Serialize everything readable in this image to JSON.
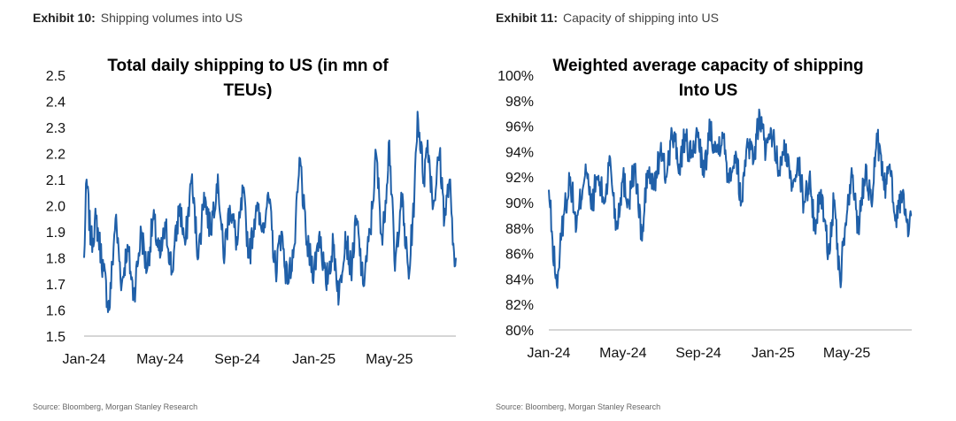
{
  "exhibits": [
    {
      "label": "Exhibit 10:",
      "desc": "Shipping volumes into US",
      "source": "Source: Bloomberg, Morgan Stanley Research"
    },
    {
      "label": "Exhibit 11:",
      "desc": "Capacity of shipping into US",
      "source": "Source: Bloomberg, Morgan Stanley Research"
    }
  ],
  "series_color": "#1f5fa8",
  "chart_data": [
    {
      "type": "line",
      "title_lines": [
        "Total daily shipping to US (in mn of",
        "TEUs)"
      ],
      "ylim": [
        1.5,
        2.5
      ],
      "yticks": [
        "1.5",
        "1.6",
        "1.7",
        "1.8",
        "1.9",
        "2.0",
        "2.1",
        "2.2",
        "2.3",
        "2.4",
        "2.5"
      ],
      "xticks": [
        "Jan-24",
        "May-24",
        "Sep-24",
        "Jan-25",
        "May-25"
      ],
      "xlim": [
        "2024-01-01",
        "2025-08-15"
      ],
      "grid": false,
      "legend": "none",
      "anchors": [
        [
          "2024-01-01",
          1.8
        ],
        [
          "2024-01-05",
          2.1
        ],
        [
          "2024-01-12",
          1.85
        ],
        [
          "2024-01-20",
          1.95
        ],
        [
          "2024-02-01",
          1.75
        ],
        [
          "2024-02-10",
          1.6
        ],
        [
          "2024-02-20",
          1.95
        ],
        [
          "2024-03-01",
          1.7
        ],
        [
          "2024-03-10",
          1.85
        ],
        [
          "2024-03-20",
          1.65
        ],
        [
          "2024-04-01",
          1.9
        ],
        [
          "2024-04-10",
          1.75
        ],
        [
          "2024-04-20",
          1.95
        ],
        [
          "2024-05-01",
          1.8
        ],
        [
          "2024-05-10",
          1.92
        ],
        [
          "2024-05-20",
          1.75
        ],
        [
          "2024-06-01",
          2.0
        ],
        [
          "2024-06-10",
          1.85
        ],
        [
          "2024-06-20",
          2.1
        ],
        [
          "2024-07-01",
          1.8
        ],
        [
          "2024-07-10",
          2.05
        ],
        [
          "2024-07-20",
          1.9
        ],
        [
          "2024-08-01",
          2.12
        ],
        [
          "2024-08-10",
          1.8
        ],
        [
          "2024-08-20",
          2.0
        ],
        [
          "2024-09-01",
          1.85
        ],
        [
          "2024-09-10",
          2.05
        ],
        [
          "2024-09-20",
          1.8
        ],
        [
          "2024-10-01",
          2.0
        ],
        [
          "2024-10-10",
          1.9
        ],
        [
          "2024-10-20",
          2.05
        ],
        [
          "2024-11-01",
          1.75
        ],
        [
          "2024-11-10",
          1.9
        ],
        [
          "2024-11-20",
          1.7
        ],
        [
          "2024-12-01",
          1.85
        ],
        [
          "2024-12-10",
          2.18
        ],
        [
          "2024-12-20",
          1.85
        ],
        [
          "2025-01-01",
          1.75
        ],
        [
          "2025-01-10",
          1.9
        ],
        [
          "2025-01-20",
          1.7
        ],
        [
          "2025-02-01",
          1.85
        ],
        [
          "2025-02-10",
          1.65
        ],
        [
          "2025-02-20",
          1.9
        ],
        [
          "2025-03-01",
          1.75
        ],
        [
          "2025-03-10",
          1.95
        ],
        [
          "2025-03-20",
          1.7
        ],
        [
          "2025-04-01",
          1.9
        ],
        [
          "2025-04-10",
          2.2
        ],
        [
          "2025-04-20",
          1.85
        ],
        [
          "2025-05-01",
          2.25
        ],
        [
          "2025-05-10",
          1.75
        ],
        [
          "2025-05-20",
          2.05
        ],
        [
          "2025-06-01",
          1.72
        ],
        [
          "2025-06-10",
          2.05
        ],
        [
          "2025-06-15",
          2.36
        ],
        [
          "2025-06-25",
          2.1
        ],
        [
          "2025-07-01",
          2.25
        ],
        [
          "2025-07-10",
          2.0
        ],
        [
          "2025-07-20",
          2.2
        ],
        [
          "2025-07-28",
          1.95
        ],
        [
          "2025-08-05",
          2.1
        ],
        [
          "2025-08-10",
          1.85
        ],
        [
          "2025-08-15",
          1.8
        ]
      ]
    },
    {
      "type": "line",
      "title_lines": [
        "Weighted average capacity of shipping",
        "Into US"
      ],
      "ylim": [
        80,
        100
      ],
      "yticks": [
        "80%",
        "82%",
        "84%",
        "86%",
        "88%",
        "90%",
        "92%",
        "94%",
        "96%",
        "98%",
        "100%"
      ],
      "xticks": [
        "Jan-24",
        "May-24",
        "Sep-24",
        "Jan-25",
        "May-25"
      ],
      "xlim": [
        "2024-01-01",
        "2025-08-15"
      ],
      "grid": false,
      "legend": "none",
      "anchors": [
        [
          "2024-01-01",
          91.0
        ],
        [
          "2024-01-07",
          87.0
        ],
        [
          "2024-01-14",
          83.5
        ],
        [
          "2024-01-25",
          89.0
        ],
        [
          "2024-02-05",
          92.0
        ],
        [
          "2024-02-15",
          88.0
        ],
        [
          "2024-03-01",
          93.0
        ],
        [
          "2024-03-10",
          89.5
        ],
        [
          "2024-03-20",
          92.0
        ],
        [
          "2024-04-01",
          90.0
        ],
        [
          "2024-04-10",
          93.5
        ],
        [
          "2024-04-20",
          88.0
        ],
        [
          "2024-05-01",
          92.0
        ],
        [
          "2024-05-10",
          90.0
        ],
        [
          "2024-05-20",
          93.0
        ],
        [
          "2024-06-01",
          87.0
        ],
        [
          "2024-06-10",
          92.5
        ],
        [
          "2024-06-20",
          91.0
        ],
        [
          "2024-07-01",
          94.0
        ],
        [
          "2024-07-10",
          92.0
        ],
        [
          "2024-07-20",
          95.5
        ],
        [
          "2024-08-01",
          93.0
        ],
        [
          "2024-08-10",
          95.0
        ],
        [
          "2024-08-20",
          93.5
        ],
        [
          "2024-09-01",
          95.5
        ],
        [
          "2024-09-10",
          92.0
        ],
        [
          "2024-09-20",
          96.0
        ],
        [
          "2024-10-01",
          94.0
        ],
        [
          "2024-10-10",
          95.5
        ],
        [
          "2024-10-20",
          92.0
        ],
        [
          "2024-11-01",
          94.0
        ],
        [
          "2024-11-10",
          90.0
        ],
        [
          "2024-11-20",
          95.0
        ],
        [
          "2024-12-01",
          93.5
        ],
        [
          "2024-12-10",
          97.0
        ],
        [
          "2024-12-20",
          94.0
        ],
        [
          "2025-01-01",
          95.0
        ],
        [
          "2025-01-10",
          92.5
        ],
        [
          "2025-01-20",
          94.0
        ],
        [
          "2025-02-01",
          91.5
        ],
        [
          "2025-02-10",
          93.5
        ],
        [
          "2025-02-20",
          90.0
        ],
        [
          "2025-03-01",
          92.0
        ],
        [
          "2025-03-10",
          88.0
        ],
        [
          "2025-03-20",
          91.0
        ],
        [
          "2025-04-01",
          86.0
        ],
        [
          "2025-04-10",
          90.0
        ],
        [
          "2025-04-20",
          84.0
        ],
        [
          "2025-05-01",
          89.0
        ],
        [
          "2025-05-10",
          92.0
        ],
        [
          "2025-05-20",
          88.0
        ],
        [
          "2025-06-01",
          93.0
        ],
        [
          "2025-06-10",
          90.0
        ],
        [
          "2025-06-20",
          95.0
        ],
        [
          "2025-07-01",
          91.0
        ],
        [
          "2025-07-10",
          93.0
        ],
        [
          "2025-07-20",
          89.0
        ],
        [
          "2025-08-01",
          91.0
        ],
        [
          "2025-08-10",
          87.5
        ],
        [
          "2025-08-15",
          89.0
        ]
      ]
    }
  ]
}
